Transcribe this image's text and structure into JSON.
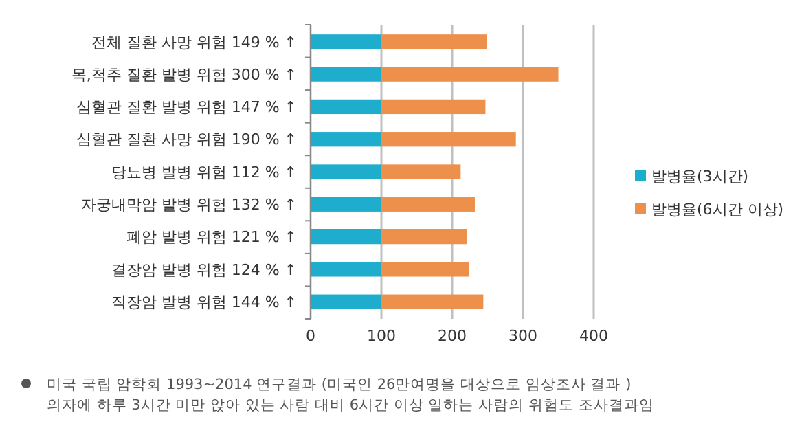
{
  "chart_data": {
    "type": "bar",
    "orientation": "horizontal",
    "stacked": true,
    "categories": [
      "전체 질환 사망 위험  149 %  ↑",
      "목,척추 질환 발병 위험 300 % ↑",
      "심혈관 질환 발병 위험 147 %  ↑",
      "심혈관 질환 사망 위험 190 %  ↑",
      "당뇨병 발병 위험 112 %  ↑",
      "자궁내막암 발병 위험 132 %  ↑",
      "폐암 발병 위험 121 %  ↑",
      "결장암 발병 위험 124 %  ↑",
      "직장암 발병 위험 144 %  ↑"
    ],
    "series": [
      {
        "name": "발병율(3시간)",
        "color": "#1fadce",
        "values": [
          100,
          100,
          100,
          100,
          100,
          100,
          100,
          100,
          100
        ]
      },
      {
        "name": "발병율(6시간 이상)",
        "color": "#ec904c",
        "values": [
          149,
          250,
          147,
          190,
          112,
          132,
          121,
          124,
          144
        ]
      }
    ],
    "xlim": [
      0,
      400
    ],
    "xticks": [
      0,
      100,
      200,
      300,
      400
    ],
    "grid": "x",
    "legend": "right",
    "annotations": [
      "미국 국립 암학회 1993~2014 연구결과 (미국인 26만여명을 대상으로 임상조사 결과 )",
      "의자에 하루 3시간 미만 앉아 있는 사람 대비 6시간 이상 일하는 사람의 위험도 조사결과임"
    ]
  }
}
